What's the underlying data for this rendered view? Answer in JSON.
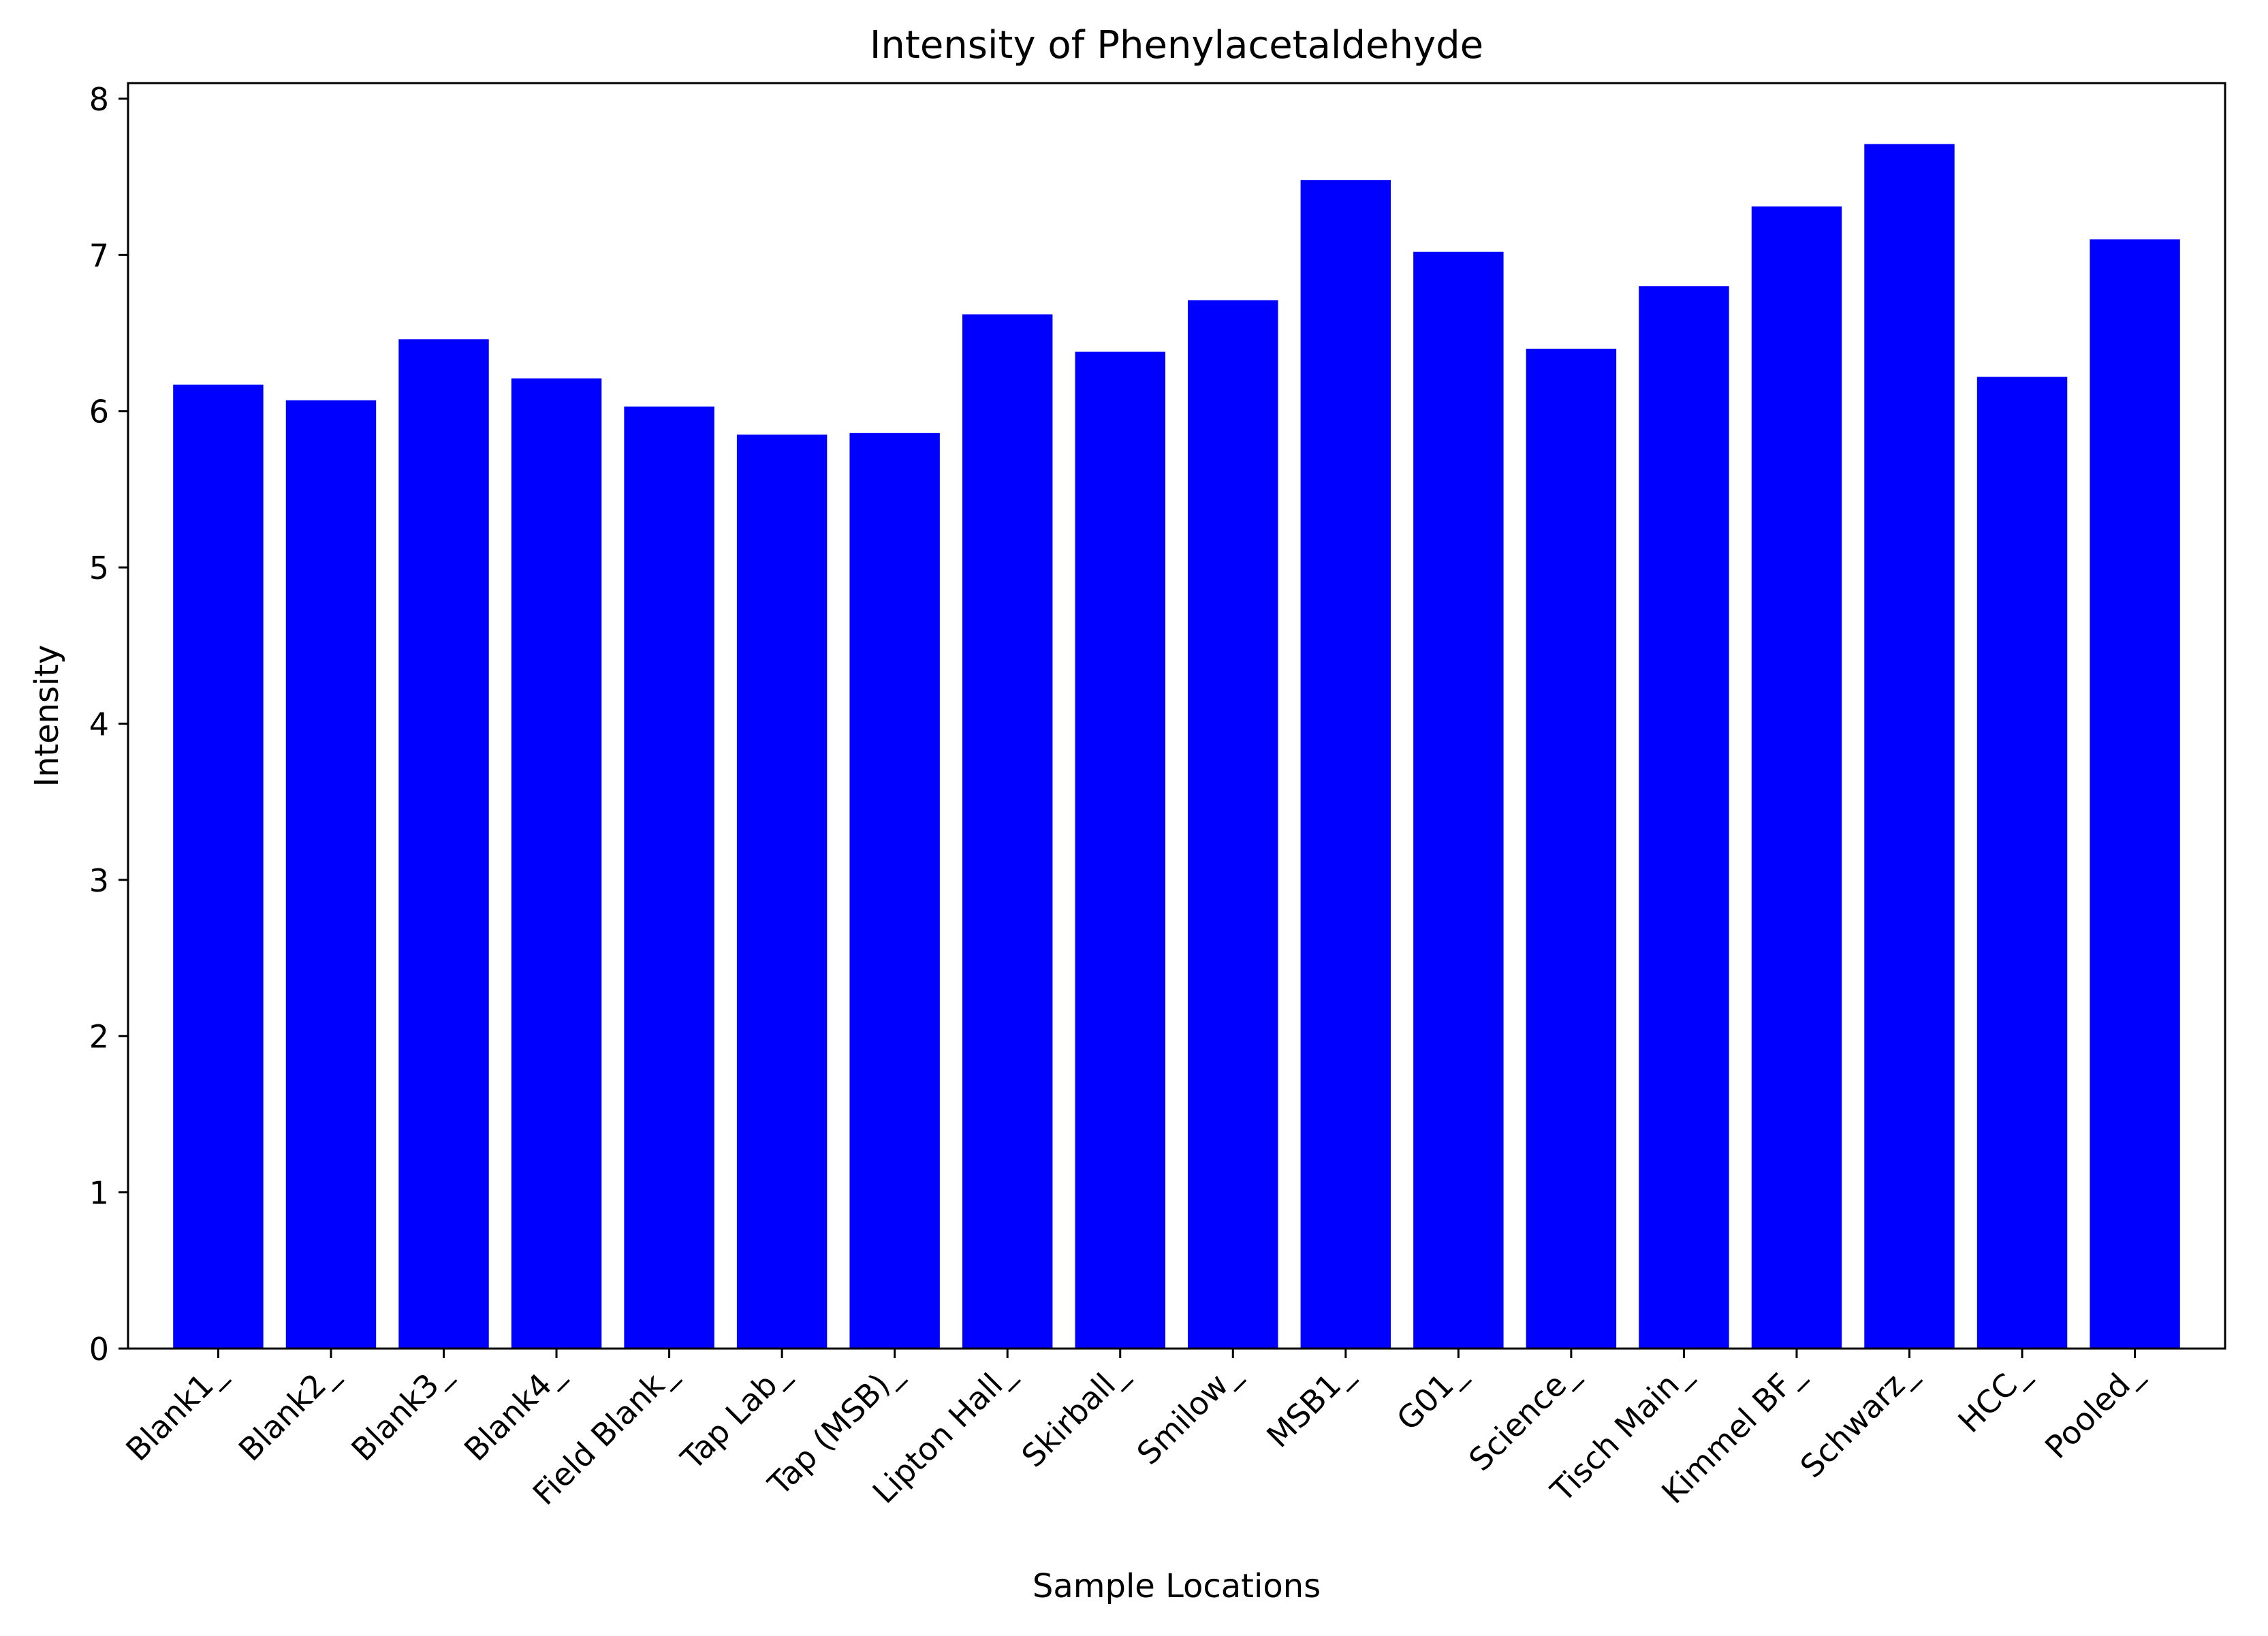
{
  "chart_data": {
    "type": "bar",
    "title": "Intensity of Phenylacetaldehyde",
    "xlabel": "Sample Locations",
    "ylabel": "Intensity",
    "categories": [
      "Blank1_",
      "Blank2_",
      "Blank3_",
      "Blank4_",
      "Field Blank_",
      "Tap Lab_",
      "Tap (MSB)_",
      "Lipton Hall_",
      "Skirball_",
      "Smilow_",
      "MSB1_",
      "G01_",
      "Science_",
      "Tisch Main_",
      "Kimmel BF_",
      "Schwarz_",
      "HCC_",
      "Pooled_"
    ],
    "values": [
      6.17,
      6.07,
      6.46,
      6.21,
      6.03,
      5.85,
      5.86,
      6.62,
      6.38,
      6.71,
      7.48,
      7.02,
      6.4,
      6.8,
      7.31,
      7.71,
      6.22,
      7.1
    ],
    "ylim": [
      0,
      8.1
    ],
    "yticks": [
      0,
      1,
      2,
      3,
      4,
      5,
      6,
      7,
      8
    ],
    "grid": false,
    "legend": "none",
    "bar_color": "#0000ff",
    "axis_color": "#000000",
    "x_tick_rotation": 45
  }
}
